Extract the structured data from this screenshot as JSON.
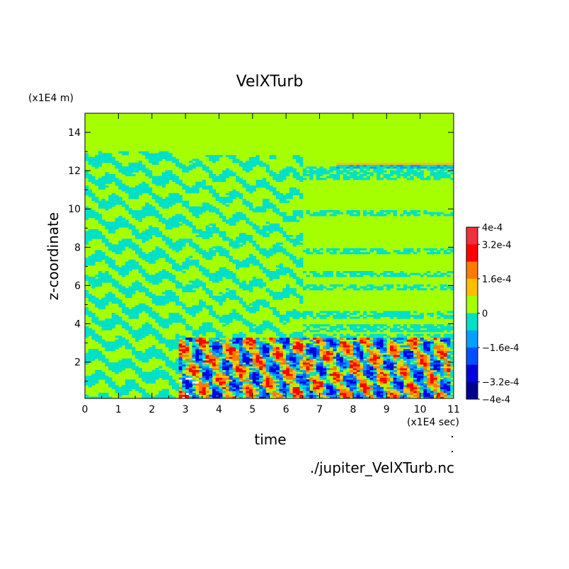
{
  "figure": {
    "source_file": "./jupiter_VelXTurb.nc"
  },
  "chart_data": {
    "type": "heatmap",
    "title": "VelXTurb",
    "xlabel": "time",
    "ylabel": "z-coordinate",
    "x_unit": "(x1E4 sec)",
    "y_unit": "(x1E4 m)",
    "xlim": [
      0,
      11
    ],
    "ylim": [
      0.1,
      15
    ],
    "x_ticks": [
      0,
      1,
      2,
      3,
      4,
      5,
      6,
      7,
      8,
      9,
      10,
      11
    ],
    "y_ticks": [
      2,
      4,
      6,
      8,
      10,
      12,
      14
    ],
    "colorbar": {
      "min": -0.0004,
      "max": 0.0004,
      "tick_values": [
        0.0004,
        0.00032,
        0.00016,
        0,
        -0.00016,
        -0.00032,
        -0.0004
      ],
      "tick_labels": [
        "4e-4",
        "3.2e-4",
        "1.6e-4",
        "0",
        "−1.6e-4",
        "−3.2e-4",
        "−4e-4"
      ],
      "colors_top_to_bottom": [
        "#f0303c",
        "#ff0000",
        "#ff7a00",
        "#ffbf00",
        "#a6ff00",
        "#00e0c8",
        "#00a0ff",
        "#0050ff",
        "#0000e0",
        "#00008f"
      ]
    },
    "field_description_regions": [
      {
        "x_range": [
          0,
          2.8
        ],
        "z_range": [
          0.1,
          13
        ],
        "pattern": "dense alternating cyan/green bands"
      },
      {
        "x_range": [
          2.8,
          6.5
        ],
        "z_range": [
          3.5,
          12.8
        ],
        "pattern": "mixed cyan/green streaks"
      },
      {
        "x_range": [
          6.5,
          11
        ],
        "z_range": [
          3.5,
          12.3
        ],
        "pattern": "mostly zero (green) with horizontal cyan bands"
      },
      {
        "x_range": [
          7.5,
          11
        ],
        "z_range": [
          12.1,
          12.4
        ],
        "pattern": "thin orange/blue layer"
      },
      {
        "x_range": [
          2.8,
          10.9
        ],
        "z_range": [
          0.1,
          3.3
        ],
        "pattern": "strong mixed red/blue turbulence"
      },
      {
        "x_range": [
          0,
          11
        ],
        "z_range": [
          13,
          15
        ],
        "pattern": "zero (green)"
      }
    ]
  }
}
